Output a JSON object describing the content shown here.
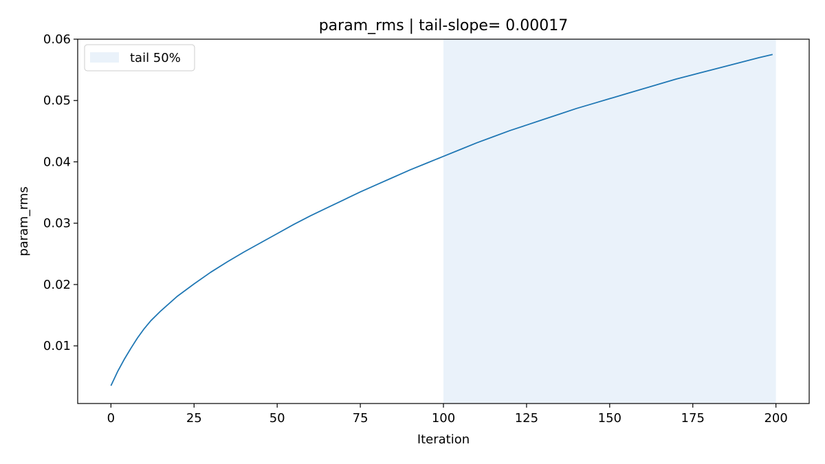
{
  "chart_data": {
    "type": "line",
    "title": "param_rms | tail-slope= 0.00017",
    "xlabel": "Iteration",
    "ylabel": "param_rms",
    "xlim": [
      -10,
      210
    ],
    "ylim": [
      0.0006,
      0.06
    ],
    "xticks": [
      0,
      25,
      50,
      75,
      100,
      125,
      150,
      175,
      200
    ],
    "xtick_labels": [
      "0",
      "25",
      "50",
      "75",
      "100",
      "125",
      "150",
      "175",
      "200"
    ],
    "yticks": [
      0.01,
      0.02,
      0.03,
      0.04,
      0.05,
      0.06
    ],
    "ytick_labels": [
      "0.01",
      "0.02",
      "0.03",
      "0.04",
      "0.05",
      "0.06"
    ],
    "grid": false,
    "legend": {
      "position": "top-left",
      "entries": [
        {
          "label": "tail 50%",
          "color": "#eaf2fa"
        }
      ]
    },
    "shaded_region": {
      "x_start": 100,
      "x_end": 200,
      "label": "tail 50%",
      "color": "#eaf2fa"
    },
    "series": [
      {
        "color": "#1f77b4",
        "x": [
          0,
          2,
          4,
          6,
          8,
          10,
          12,
          15,
          20,
          25,
          30,
          35,
          40,
          45,
          50,
          55,
          60,
          65,
          70,
          75,
          80,
          85,
          90,
          95,
          100,
          105,
          110,
          115,
          120,
          125,
          130,
          135,
          140,
          145,
          150,
          155,
          160,
          165,
          170,
          175,
          180,
          185,
          190,
          195,
          199
        ],
        "y": [
          0.0035,
          0.0058,
          0.0078,
          0.0096,
          0.0113,
          0.0128,
          0.0141,
          0.0157,
          0.0181,
          0.0201,
          0.022,
          0.0237,
          0.0253,
          0.0268,
          0.0283,
          0.0298,
          0.0312,
          0.0325,
          0.0338,
          0.0351,
          0.0363,
          0.0375,
          0.0387,
          0.0398,
          0.0409,
          0.042,
          0.0431,
          0.0441,
          0.0451,
          0.046,
          0.0469,
          0.0478,
          0.0487,
          0.0495,
          0.0503,
          0.0511,
          0.0519,
          0.0527,
          0.0535,
          0.0542,
          0.0549,
          0.0556,
          0.0563,
          0.057,
          0.0575
        ]
      }
    ]
  }
}
